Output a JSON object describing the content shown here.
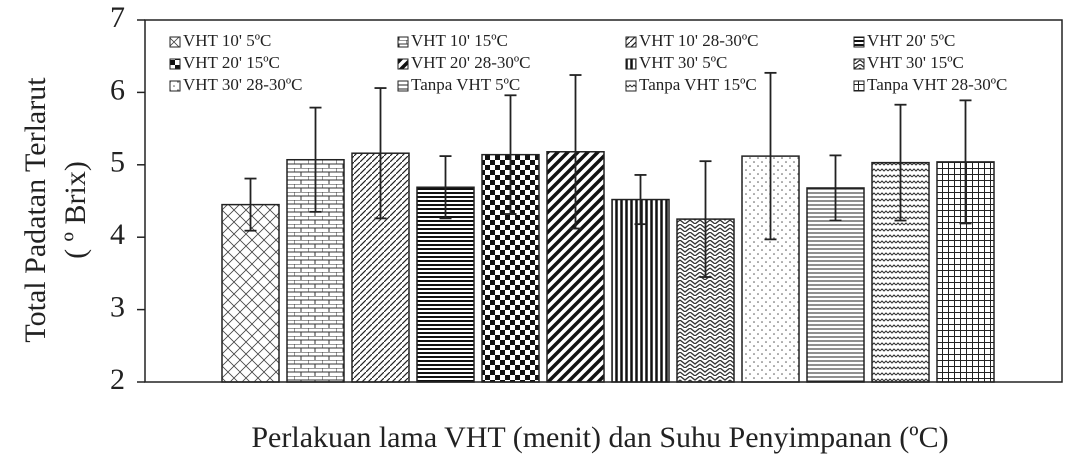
{
  "chart_data": {
    "type": "bar",
    "x_label": "Perlakuan lama VHT (menit) dan Suhu Penyimpanan (ºC)",
    "y_label": [
      "Total Padatan Terlarut",
      "( º Brix)"
    ],
    "categories": [
      "VHT 10' 5ºC",
      "VHT 10' 15ºC",
      "VHT 10' 28-30ºC",
      "VHT 20' 5ºC",
      "VHT 20' 15ºC",
      "VHT 20' 28-30ºC",
      "VHT 30' 5ºC",
      "VHT 30' 15ºC",
      "VHT 30' 28-30ºC",
      "Tanpa VHT  5ºC",
      "Tanpa VHT  15ºC",
      "Tanpa VHT  28-30ºC"
    ],
    "values": [
      4.45,
      5.07,
      5.16,
      4.69,
      5.14,
      5.18,
      4.52,
      4.25,
      5.12,
      4.68,
      5.03,
      5.04
    ],
    "errors": [
      0.36,
      0.72,
      0.9,
      0.43,
      0.82,
      1.06,
      0.34,
      0.8,
      1.15,
      0.45,
      0.8,
      0.85
    ],
    "color": "#222222",
    "ylim": [
      2,
      7
    ],
    "yticks": [
      2,
      3,
      4,
      5,
      6,
      7
    ]
  }
}
